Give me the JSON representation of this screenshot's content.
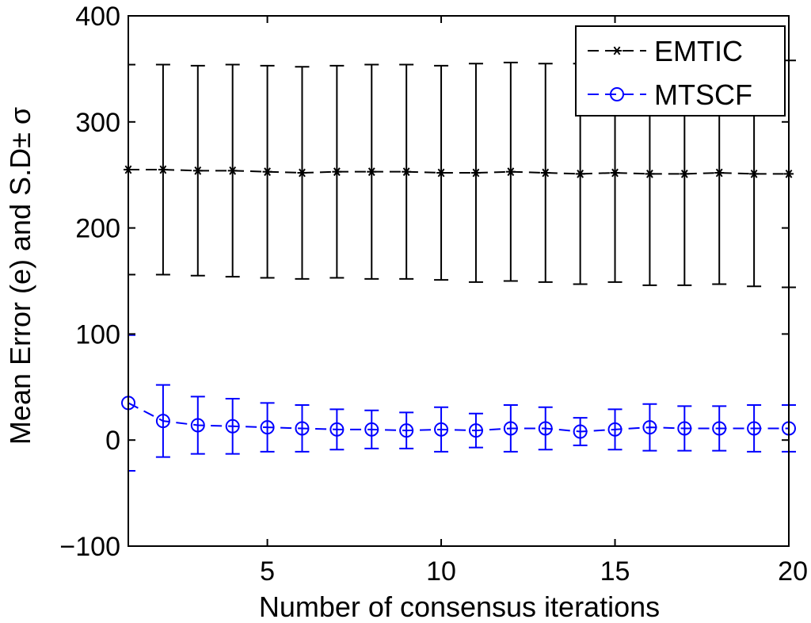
{
  "chart_data": {
    "type": "line",
    "title": "",
    "xlabel": "Number of consensus iterations",
    "ylabel": "Mean Error (e) and S.D± σ",
    "xlim": [
      1,
      20
    ],
    "ylim": [
      -100,
      400
    ],
    "xticks": [
      5,
      10,
      15,
      20
    ],
    "yticks": [
      -100,
      0,
      100,
      200,
      300,
      400
    ],
    "x_tick_labels": [
      "5",
      "10",
      "15",
      "20"
    ],
    "y_tick_labels": [
      "−100",
      "0",
      "100",
      "200",
      "300",
      "400"
    ],
    "grid": false,
    "legend_position": "top-right",
    "x": [
      1,
      2,
      3,
      4,
      5,
      6,
      7,
      8,
      9,
      10,
      11,
      12,
      13,
      14,
      15,
      16,
      17,
      18,
      19,
      20
    ],
    "series": [
      {
        "name": "EMTIC",
        "color": "#000000",
        "marker": "asterisk",
        "line_style": "dashed",
        "values": [
          255,
          255,
          254,
          254,
          253,
          252,
          253,
          253,
          253,
          252,
          252,
          253,
          252,
          251,
          252,
          251,
          251,
          252,
          251,
          251
        ],
        "errors": [
          99,
          99,
          99,
          100,
          100,
          100,
          100,
          101,
          101,
          101,
          103,
          103,
          103,
          104,
          103,
          105,
          105,
          105,
          106,
          107
        ]
      },
      {
        "name": "MTSCF",
        "color": "#0000ff",
        "marker": "circle",
        "line_style": "dashed",
        "values": [
          35,
          18,
          14,
          13,
          12,
          11,
          10,
          10,
          9,
          10,
          9,
          11,
          11,
          8,
          10,
          12,
          11,
          11,
          11,
          11
        ],
        "errors": [
          64,
          34,
          27,
          26,
          23,
          22,
          19,
          18,
          17,
          21,
          16,
          22,
          20,
          13,
          19,
          22,
          21,
          21,
          22,
          22
        ]
      }
    ]
  }
}
